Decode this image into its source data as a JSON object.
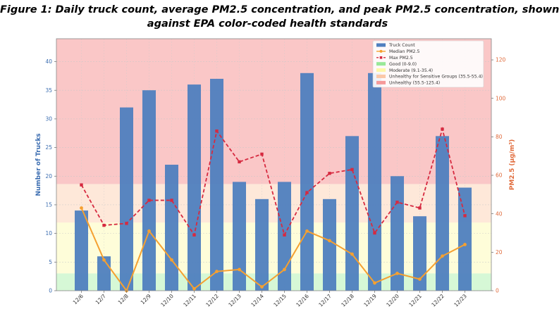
{
  "caption": {
    "line1": "Figure 1: Daily truck count, average PM2.5 concentration, and peak PM2.5 concentration, shown",
    "line2": "against EPA color-coded health standards"
  },
  "colors": {
    "bar": "#4f7fbf",
    "median": "#f5a030",
    "max": "#d62a40",
    "good_band": "#c8f5c8",
    "moderate_band": "#fdfccc",
    "usg_band": "#fde0cc",
    "unhealthy_band": "#f8b4b4",
    "left_axis": "#3a6cb0",
    "right_axis": "#e06a3a"
  },
  "chart_data": {
    "type": "bar",
    "categories": [
      "12/6",
      "12/7",
      "12/8",
      "12/9",
      "12/10",
      "12/11",
      "12/12",
      "12/13",
      "12/14",
      "12/15",
      "12/16",
      "12/17",
      "12/18",
      "12/19",
      "12/20",
      "12/21",
      "12/22",
      "12/23"
    ],
    "series": [
      {
        "name": "Truck Count",
        "axis": "left",
        "kind": "bar",
        "values": [
          14,
          6,
          32,
          35,
          22,
          36,
          37,
          19,
          16,
          19,
          38,
          16,
          27,
          38,
          20,
          13,
          27,
          18
        ]
      },
      {
        "name": "Median PM2.5",
        "axis": "right",
        "kind": "line",
        "values": [
          43,
          16,
          0,
          31,
          16,
          1,
          10,
          11,
          2,
          11,
          31,
          26,
          19,
          4,
          9,
          6,
          18,
          24
        ]
      },
      {
        "name": "Max PM2.5",
        "axis": "right",
        "kind": "line-dashed",
        "values": [
          55,
          34,
          35,
          47,
          47,
          29,
          83,
          67,
          71,
          29,
          51,
          61,
          63,
          30,
          46,
          43,
          84,
          39
        ]
      }
    ],
    "bands": [
      {
        "name": "Good (0-9.0)",
        "from": 0,
        "to": 9.0
      },
      {
        "name": "Moderate (9.1-35.4)",
        "from": 9.1,
        "to": 35.4
      },
      {
        "name": "Unhealthy for Sensitive Groups (35.5-55.4)",
        "from": 35.5,
        "to": 55.4
      },
      {
        "name": "Unhealthy (55.5-125.4)",
        "from": 55.5,
        "to": 125.4
      }
    ],
    "legend": [
      "Truck Count",
      "Median PM2.5",
      "Max PM2.5",
      "Good (0-9.0)",
      "Moderate (9.1-35.4)",
      "Unhealthy for Sensitive Groups (35.5-55.4)",
      "Unhealthy (55.5-125.4)"
    ],
    "legend_position": "top-right",
    "ylabel": "Number of Trucks",
    "y2label": "PM2.5 (µg/m³)",
    "ylim": [
      0,
      44
    ],
    "y2lim": [
      0,
      131
    ],
    "yticks": [
      0,
      5,
      10,
      15,
      20,
      25,
      30,
      35,
      40
    ],
    "y2ticks": [
      0,
      20,
      40,
      60,
      80,
      100,
      120
    ]
  }
}
